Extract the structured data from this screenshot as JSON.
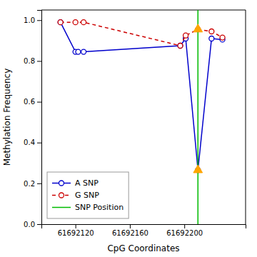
{
  "chart_data": {
    "type": "line",
    "xlabel": "CpG Coordinates",
    "ylabel": "Methylation Frequency",
    "xlim": [
      61692095,
      61692245
    ],
    "ylim": [
      0.0,
      1.05
    ],
    "xticks": [
      61692120,
      61692160,
      61692200
    ],
    "yticks": [
      {
        "value": 0.0,
        "label": "0.0"
      },
      0.2,
      0.4,
      0.6,
      0.8,
      {
        "value": 1.0,
        "label": "1.0"
      }
    ],
    "grid": false,
    "legend": "lower left",
    "series": [
      {
        "name": "A SNP",
        "type": "line",
        "color": "#0000CC",
        "marker": "circle",
        "line_style": "solid",
        "x": [
          61692109,
          61692120,
          61692122,
          61692126,
          61692197,
          61692201,
          61692210,
          61692220,
          61692228
        ],
        "values": [
          0.99,
          0.845,
          0.845,
          0.845,
          0.875,
          0.91,
          0.265,
          0.91,
          0.905
        ]
      },
      {
        "name": "G SNP",
        "type": "line",
        "color": "#CC0000",
        "marker": "circle",
        "line_style": "dashed",
        "x": [
          61692109,
          61692120,
          61692126,
          61692197,
          61692201,
          61692210,
          61692220,
          61692228
        ],
        "values": [
          0.99,
          0.99,
          0.99,
          0.875,
          0.925,
          0.955,
          0.945,
          0.915
        ]
      },
      {
        "name": "SNP Position",
        "type": "vline",
        "color": "#00BB00",
        "line_style": "solid",
        "x": [
          61692210
        ]
      },
      {
        "type": "scatter",
        "color": "#FFA500",
        "marker": "triangle",
        "x": [
          61692210,
          61692210
        ],
        "values": [
          0.955,
          0.265
        ]
      }
    ]
  }
}
